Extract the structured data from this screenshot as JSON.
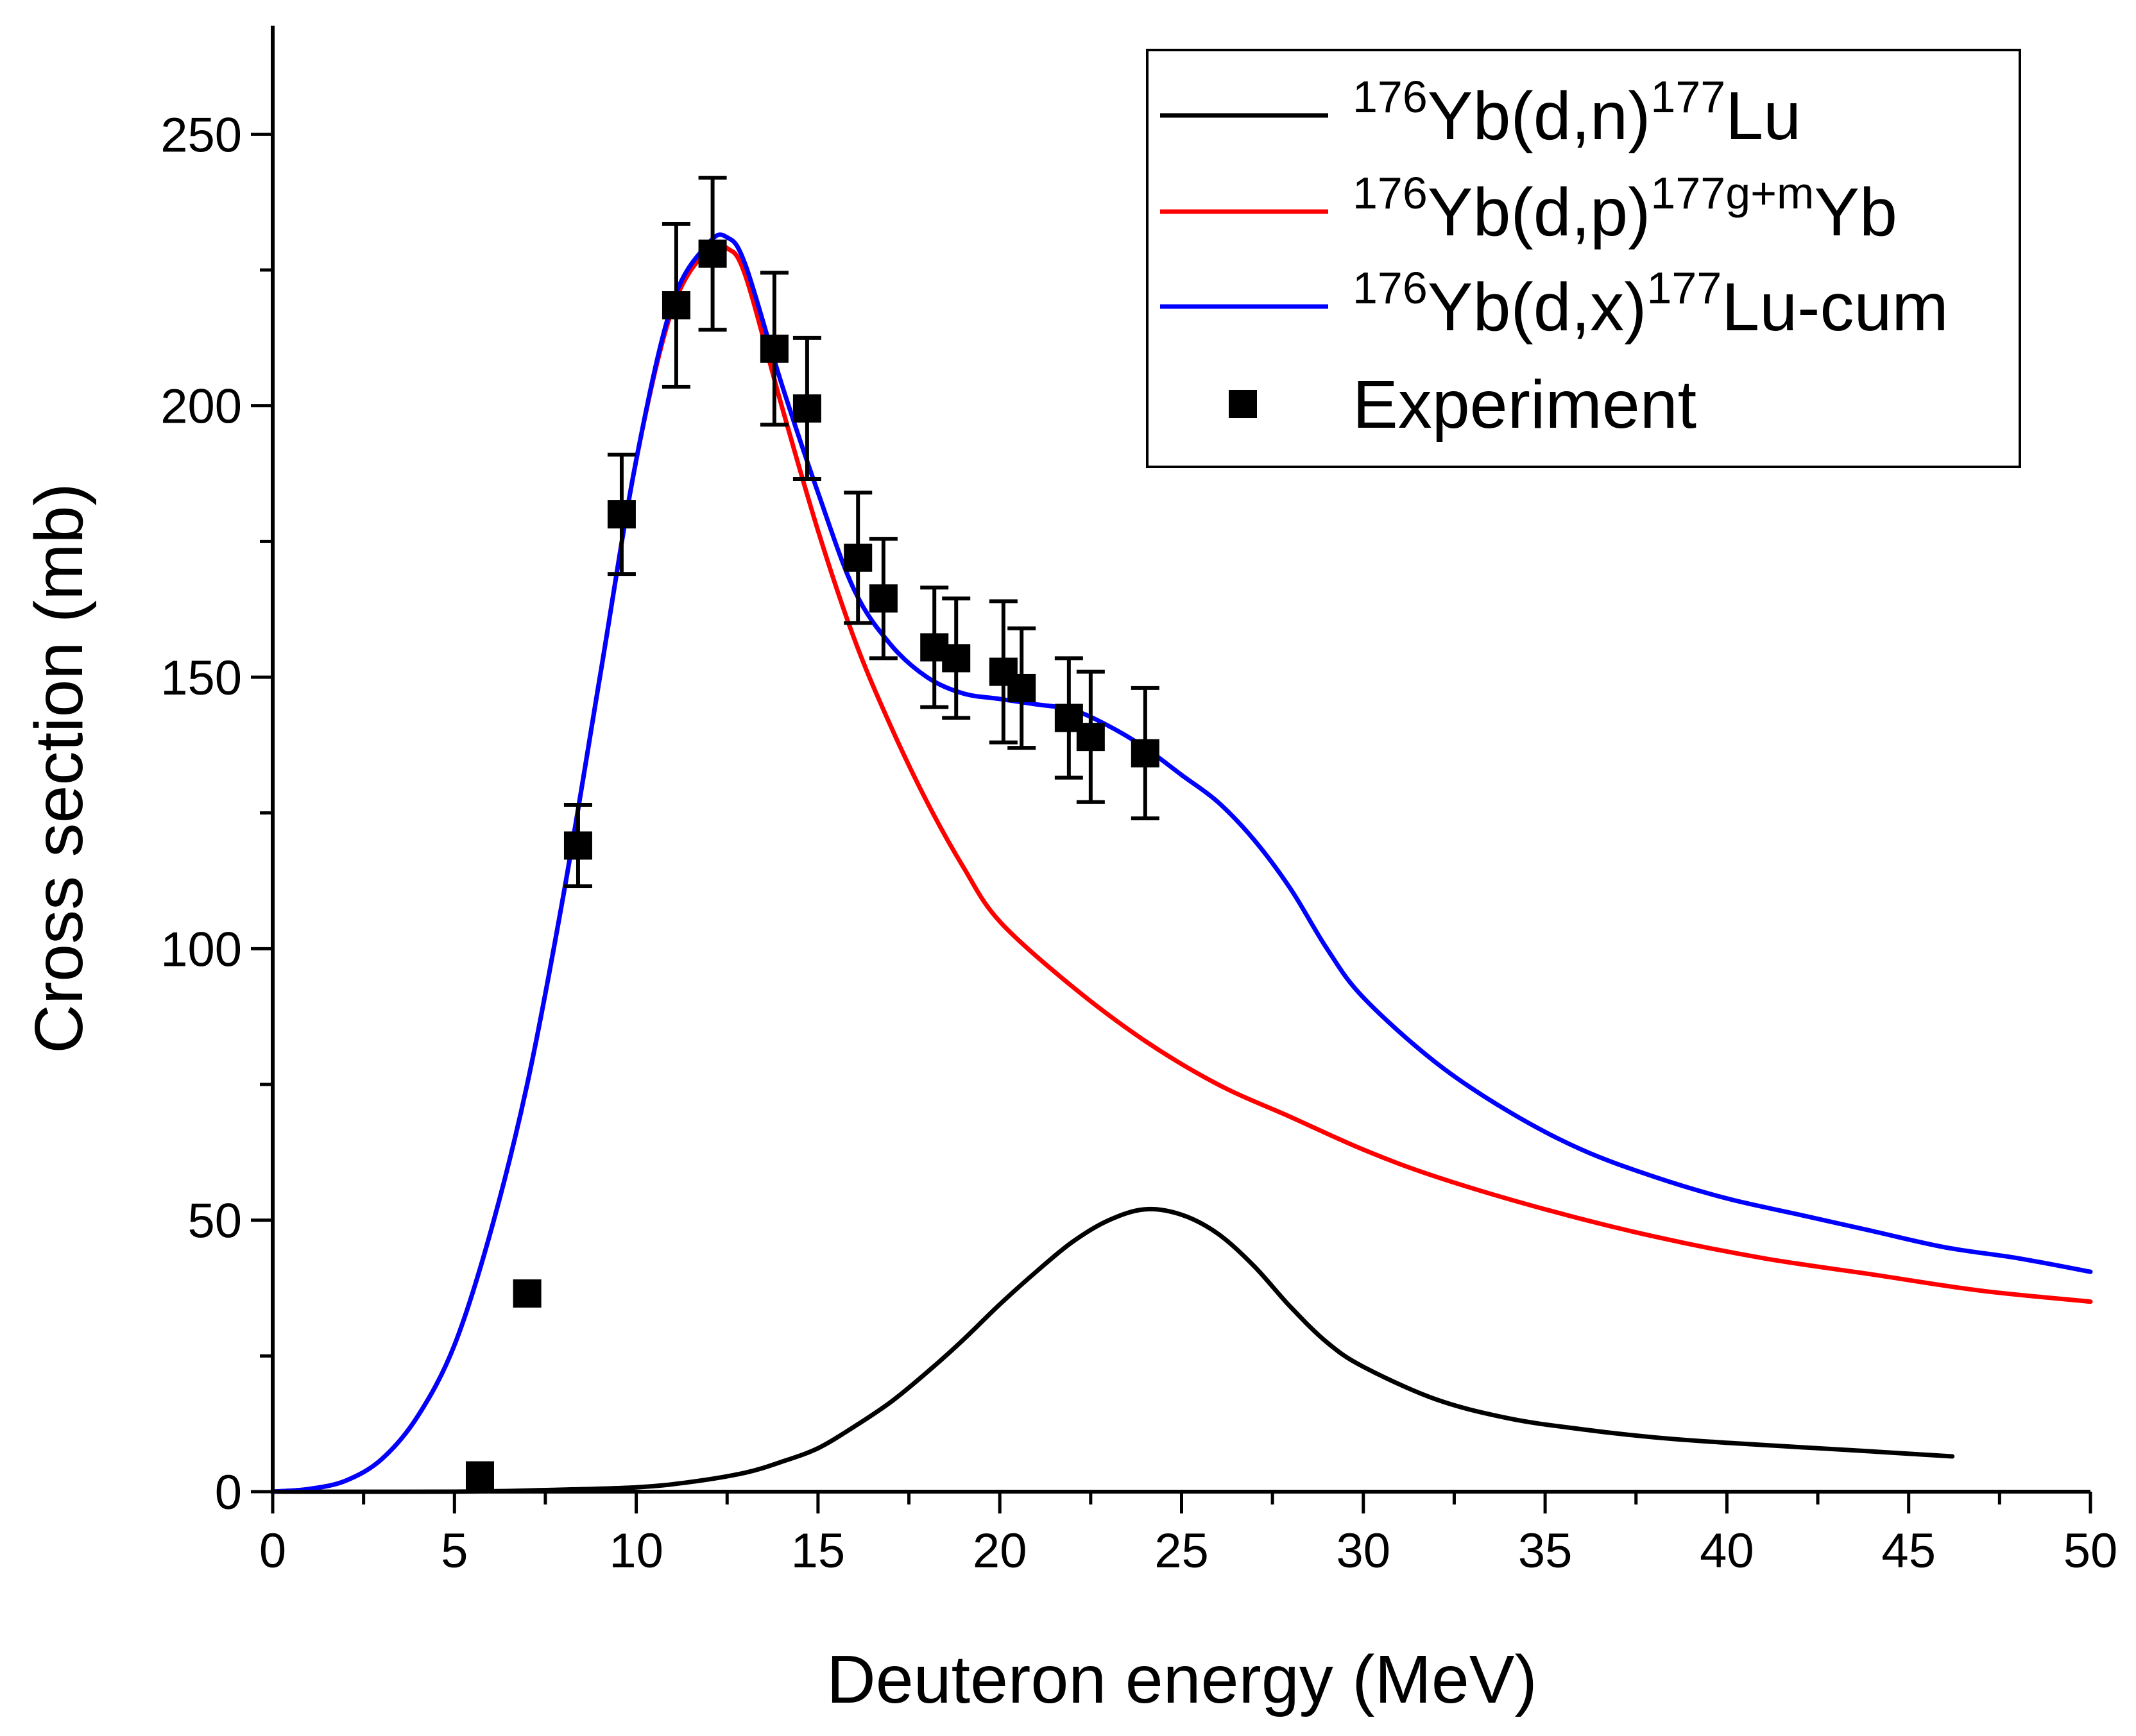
{
  "chart_data": {
    "type": "line",
    "title": "",
    "xlabel": "Deuteron energy (MeV)",
    "ylabel": "Cross section (mb)",
    "xlim": [
      0,
      50
    ],
    "ylim": [
      0,
      270
    ],
    "xticks": [
      0,
      5,
      10,
      15,
      20,
      25,
      30,
      35,
      40,
      45,
      50
    ],
    "xtick_labels": [
      "0",
      "5",
      "10",
      "15",
      "20",
      "25",
      "30",
      "35",
      "40",
      "45",
      "50"
    ],
    "yticks": [
      0,
      50,
      100,
      150,
      200,
      250
    ],
    "ytick_labels": [
      "0",
      "50",
      "100",
      "150",
      "200",
      "250"
    ],
    "grid": false,
    "legend_position": "top-right",
    "series": [
      {
        "name": "176Yb(d,n)177Lu",
        "legend": {
          "sup1": "176",
          "mid": "Yb(d,n)",
          "sup2": "177",
          "end": "Lu"
        },
        "color": "#000000",
        "kind": "line",
        "x": [
          0,
          5,
          7.5,
          10,
          11.5,
          13,
          14,
          15,
          16,
          17,
          18,
          19,
          20,
          21,
          22,
          23,
          24,
          25,
          26,
          27,
          28,
          29,
          30,
          32,
          34,
          36,
          38,
          40,
          42,
          44,
          46.2
        ],
        "y": [
          0,
          0,
          0.3,
          0.8,
          1.8,
          3.5,
          5.5,
          8,
          12,
          16.5,
          22,
          28,
          34.5,
          40.5,
          46,
          50,
          52,
          51,
          47.5,
          41.5,
          34,
          27.5,
          23,
          17,
          13.5,
          11.5,
          10,
          9,
          8.2,
          7.4,
          6.5
        ]
      },
      {
        "name": "176Yb(d,p)177g+mYb",
        "legend": {
          "sup1": "176",
          "mid": "Yb(d,p)",
          "sup2": "177g+m",
          "end": "Yb"
        },
        "color": "#ff0000",
        "kind": "line",
        "x": [
          0,
          1,
          2,
          3,
          4,
          5,
          6,
          7,
          8,
          9,
          10,
          11,
          12,
          12.5,
          13,
          14,
          15,
          16,
          17,
          18,
          19,
          20,
          22,
          24,
          26,
          28,
          30,
          32,
          35,
          38,
          41,
          44,
          47,
          50
        ],
        "y": [
          0,
          0.5,
          2,
          6,
          14,
          27,
          48,
          75,
          110,
          150,
          190,
          218,
          229,
          229,
          224,
          200,
          177,
          157,
          141,
          127,
          115,
          105,
          93,
          83,
          75,
          69,
          63,
          58,
          52,
          47,
          43,
          40,
          37,
          35
        ]
      },
      {
        "name": "176Yb(d,x)177Lu-cum",
        "legend": {
          "sup1": "176",
          "mid": "Yb(d,x)",
          "sup2": "177",
          "end": "Lu-cum"
        },
        "color": "#0000ff",
        "kind": "line",
        "x": [
          0,
          1,
          2,
          3,
          4,
          5,
          6,
          7,
          8,
          9,
          10,
          11,
          12,
          12.5,
          13,
          14,
          15,
          16,
          17,
          18,
          19,
          20,
          21,
          22,
          23,
          24,
          25,
          26,
          27,
          28,
          29,
          30,
          32,
          34,
          36,
          38,
          40,
          42,
          44,
          46,
          48,
          50
        ],
        "y": [
          0,
          0.5,
          2,
          6,
          14,
          27,
          48,
          75,
          110,
          150,
          190,
          219,
          230,
          231,
          226,
          204,
          184,
          166,
          156,
          150,
          147,
          146,
          145,
          144,
          141,
          137,
          132,
          127,
          120,
          111,
          100,
          91,
          79,
          70,
          63,
          58,
          54,
          51,
          48,
          45,
          43,
          40.5
        ]
      },
      {
        "name": "Experiment",
        "legend": {
          "sup1": "",
          "mid": "Experiment",
          "sup2": "",
          "end": ""
        },
        "color": "#000000",
        "kind": "scatter",
        "x": [
          5.7,
          7.0,
          8.4,
          9.6,
          11.1,
          12.1,
          13.8,
          14.7,
          16.1,
          16.8,
          18.2,
          18.8,
          20.1,
          20.6,
          21.9,
          22.5,
          24.0
        ],
        "y": [
          3,
          36.5,
          119,
          180,
          218.5,
          228,
          210.5,
          199.5,
          172,
          164.5,
          155.5,
          153.5,
          151,
          148,
          142.5,
          139,
          136
        ],
        "yerr": [
          null,
          null,
          7.5,
          11,
          15,
          14,
          14,
          13,
          12,
          11,
          11,
          11,
          13,
          11,
          11,
          12,
          12
        ]
      }
    ]
  }
}
